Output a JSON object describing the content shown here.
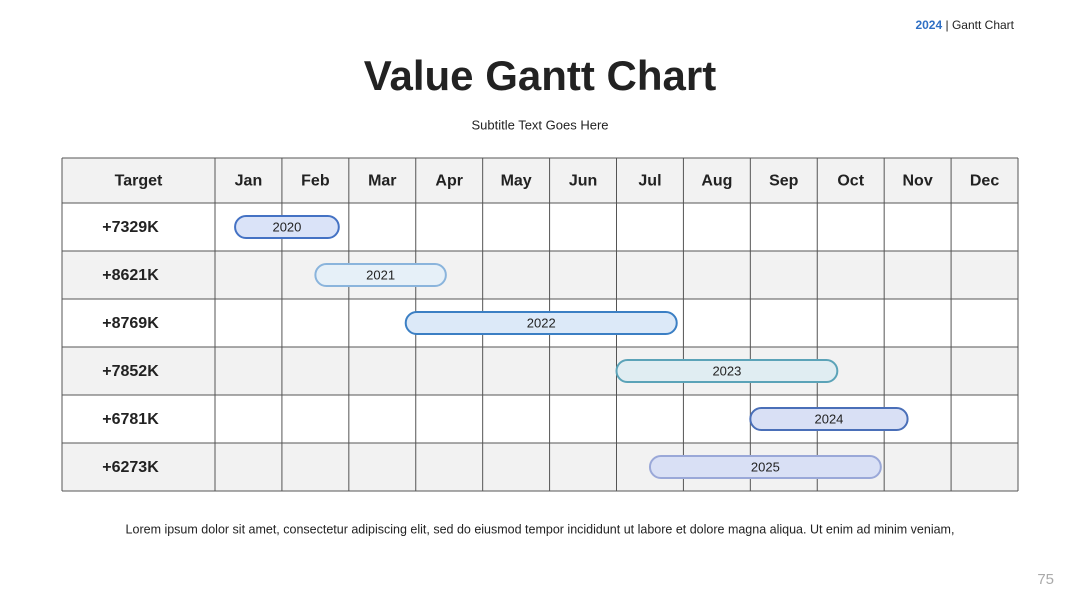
{
  "header": {
    "year": "2024",
    "separator": "|",
    "label": "Gantt Chart"
  },
  "chart_data": {
    "type": "gantt",
    "title": "Value Gantt Chart",
    "subtitle": "Subtitle Text Goes Here",
    "first_column": "Target",
    "categories": [
      "Jan",
      "Feb",
      "Mar",
      "Apr",
      "May",
      "Jun",
      "Jul",
      "Aug",
      "Sep",
      "Oct",
      "Nov",
      "Dec"
    ],
    "xlim": [
      0,
      12
    ],
    "rows": [
      {
        "target": "+7329K",
        "name": "2020",
        "start": 0.3,
        "end": 1.85,
        "color": "#dae3f8",
        "border": "#4472c4"
      },
      {
        "target": "+8621K",
        "name": "2021",
        "start": 1.5,
        "end": 3.45,
        "color": "#e6f0f8",
        "border": "#8ab4dc"
      },
      {
        "target": "+8769K",
        "name": "2022",
        "start": 2.85,
        "end": 6.9,
        "color": "#dce9f8",
        "border": "#3b7fc4"
      },
      {
        "target": "+7852K",
        "name": "2023",
        "start": 6,
        "end": 9.3,
        "color": "#e0edf2",
        "border": "#5ba3b8"
      },
      {
        "target": "+6781K",
        "name": "2024",
        "start": 8,
        "end": 10.35,
        "color": "#d9e0f5",
        "border": "#4a6fb8"
      },
      {
        "target": "+6273K",
        "name": "2025",
        "start": 6.5,
        "end": 9.95,
        "color": "#d9e0f5",
        "border": "#9aa8d8"
      }
    ]
  },
  "footer": {
    "text": "Lorem ipsum dolor sit amet, consectetur adipiscing elit, sed do eiusmod tempor incididunt ut labore et dolore magna aliqua. Ut enim ad minim veniam,",
    "page_number": "75"
  }
}
